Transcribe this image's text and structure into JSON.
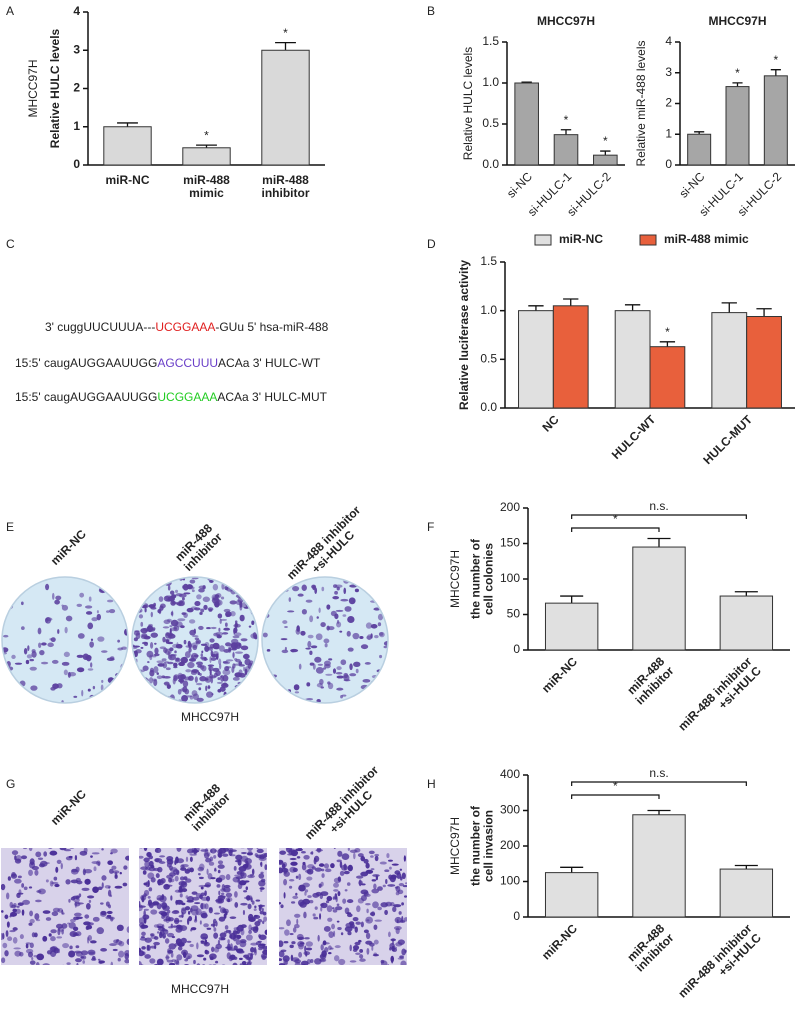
{
  "chart_data": [
    {
      "panel": "A",
      "type": "bar",
      "side_label": "MHCC97H",
      "y_label": "Relative HULC levels",
      "categories": [
        "miR-NC",
        "miR-488\nmimic",
        "miR-488\ninhibitor"
      ],
      "series": [
        {
          "color": "#d9d9d9",
          "values": [
            1.0,
            0.45,
            3.0
          ],
          "errors": [
            0.1,
            0.07,
            0.2
          ]
        }
      ],
      "ylim": [
        0,
        4
      ],
      "yticks": [
        0,
        1,
        2,
        3,
        4
      ],
      "annotations": [
        {
          "text": "*",
          "category": "miR-488\nmimic"
        },
        {
          "text": "*",
          "category": "miR-488\ninhibitor"
        }
      ]
    },
    {
      "panel": "B",
      "type": "bar",
      "title": "MHCC97H",
      "y_label": "Relative HULC levels",
      "categories": [
        "si-NC",
        "si-HULC-1",
        "si-HULC-2"
      ],
      "series": [
        {
          "color": "#a6a6a6",
          "values": [
            1.0,
            0.37,
            0.12
          ],
          "errors": [
            0.01,
            0.06,
            0.05
          ]
        }
      ],
      "ylim": [
        0,
        1.5
      ],
      "yticks": [
        {
          "value": 0,
          "label": "0.0"
        },
        {
          "value": 0.5,
          "label": "0.5"
        },
        {
          "value": 1,
          "label": "1.0"
        },
        {
          "value": 1.5,
          "label": "1.5"
        }
      ],
      "annotations": [
        {
          "text": "*",
          "category": "si-HULC-1"
        },
        {
          "text": "*",
          "category": "si-HULC-2"
        }
      ]
    },
    {
      "type": "bar",
      "title": "MHCC97H",
      "y_label": "Relative miR-488 levels",
      "categories": [
        "si-NC",
        "si-HULC-1",
        "si-HULC-2"
      ],
      "series": [
        {
          "color": "#a6a6a6",
          "values": [
            1.0,
            2.55,
            2.9
          ],
          "errors": [
            0.08,
            0.12,
            0.2
          ]
        }
      ],
      "ylim": [
        0,
        4
      ],
      "yticks": [
        0,
        1,
        2,
        3,
        4
      ],
      "annotations": [
        {
          "text": "*",
          "category": "si-HULC-1"
        },
        {
          "text": "*",
          "category": "si-HULC-2"
        }
      ]
    },
    {
      "panel": "D",
      "type": "bar",
      "y_label": "Relative luciferase activity",
      "legend": "top",
      "categories": [
        "NC",
        "HULC-WT",
        "HULC-MUT"
      ],
      "series": [
        {
          "name": "miR-NC",
          "color": "#e0e0e0",
          "values": [
            1.0,
            1.0,
            0.98
          ],
          "errors": [
            0.05,
            0.06,
            0.1
          ]
        },
        {
          "name": "miR-488 mimic",
          "color": "#e8603c",
          "values": [
            1.05,
            0.63,
            0.94
          ],
          "errors": [
            0.07,
            0.05,
            0.08
          ]
        }
      ],
      "ylim": [
        0,
        1.5
      ],
      "yticks": [
        {
          "value": 0,
          "label": "0.0"
        },
        {
          "value": 0.5,
          "label": "0.5"
        },
        {
          "value": 1,
          "label": "1.0"
        },
        {
          "value": 1.5,
          "label": "1.5"
        }
      ],
      "annotations": [
        {
          "text": "*",
          "category": "HULC-WT",
          "series": "miR-488 mimic"
        }
      ]
    },
    {
      "panel": "F",
      "type": "bar",
      "side_label": "MHCC97H",
      "y_label": "the number of\ncell colonies",
      "categories": [
        "miR-NC",
        "miR-488\ninhibitor",
        "miR-488 inhibitor\n+si-HULC"
      ],
      "series": [
        {
          "color": "#e0e0e0",
          "values": [
            66,
            145,
            76
          ],
          "errors": [
            10,
            12,
            6
          ]
        }
      ],
      "ylim": [
        0,
        200
      ],
      "yticks": [
        0,
        50,
        100,
        150,
        200
      ],
      "brackets": [
        {
          "text": "*",
          "from": "miR-NC",
          "to": "miR-488\ninhibitor"
        },
        {
          "text": "n.s.",
          "from": "miR-NC",
          "to": "miR-488 inhibitor\n+si-HULC"
        }
      ]
    },
    {
      "panel": "H",
      "type": "bar",
      "side_label": "MHCC97H",
      "y_label": "the number of\ncell invasion",
      "categories": [
        "miR-NC",
        "miR-488\ninhibitor",
        "miR-488 inhibitor\n+si-HULC"
      ],
      "series": [
        {
          "color": "#e0e0e0",
          "values": [
            125,
            288,
            135
          ],
          "errors": [
            15,
            12,
            10
          ]
        }
      ],
      "ylim": [
        0,
        400
      ],
      "yticks": [
        0,
        100,
        200,
        300,
        400
      ],
      "brackets": [
        {
          "text": "*",
          "from": "miR-NC",
          "to": "miR-488\ninhibitor"
        },
        {
          "text": "n.s.",
          "from": "miR-NC",
          "to": "miR-488 inhibitor\n+si-HULC"
        }
      ]
    }
  ],
  "sequence_panel": {
    "panel": "C",
    "lines": [
      [
        {
          "text": "3' cuggUUCUUUA---",
          "color": "#222222"
        },
        {
          "text": "UCGGAAA",
          "color": "#e02020"
        },
        {
          "text": "-GUu 5' hsa-miR-488",
          "color": "#222222"
        }
      ],
      [
        {
          "text": "15:5' caugAUGGAAUUGG",
          "color": "#222222"
        },
        {
          "text": "AGCCUUU",
          "color": "#6a3fc8"
        },
        {
          "text": "ACAa 3' HULC-WT",
          "color": "#222222"
        }
      ],
      [
        {
          "text": "15:5' caugAUGGAAUUGG",
          "color": "#222222"
        },
        {
          "text": "UCGGAAA",
          "color": "#22cc22"
        },
        {
          "text": "ACAa 3' HULC-MUT",
          "color": "#222222"
        }
      ]
    ]
  },
  "image_panels": [
    {
      "panel": "E",
      "labels": [
        "miR-NC",
        "miR-488\ninhibitor",
        "miR-488 inhibitor\n+si-HULC"
      ],
      "caption": "MHCC97H"
    },
    {
      "panel": "G",
      "labels": [
        "miR-NC",
        "miR-488\ninhibitor",
        "miR-488 inhibitor\n+si-HULC"
      ],
      "caption": "MHCC97H"
    }
  ]
}
